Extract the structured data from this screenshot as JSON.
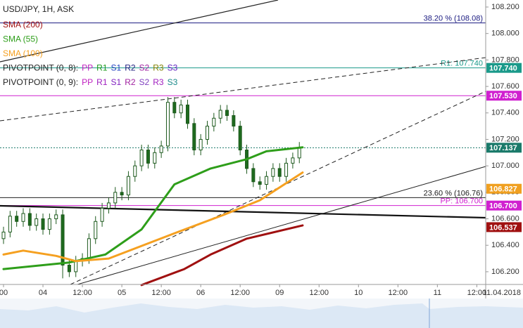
{
  "chart_data": {
    "type": "candlestick",
    "title": "USD/JPY, 1H, ASK",
    "xlim": [
      -1.07,
      146.7
    ],
    "ylim": [
      106.104,
      108.253
    ],
    "xticks": [
      {
        "value": 0,
        "label": "00"
      },
      {
        "value": 12,
        "label": "04"
      },
      {
        "value": 24,
        "label": "12:00"
      },
      {
        "value": 36,
        "label": "05"
      },
      {
        "value": 48,
        "label": "12:00"
      },
      {
        "value": 60,
        "label": "06"
      },
      {
        "value": 72,
        "label": "12:00"
      },
      {
        "value": 84,
        "label": "09"
      },
      {
        "value": 96,
        "label": "12:00"
      },
      {
        "value": 108,
        "label": "10"
      },
      {
        "value": 120,
        "label": "12:00"
      },
      {
        "value": 132,
        "label": "11"
      },
      {
        "value": 144,
        "label": "12:00"
      }
    ],
    "date_label": "11.04.2018",
    "yticks": [
      {
        "value": 106.2,
        "label": "106.200"
      },
      {
        "value": 106.4,
        "label": "106.400"
      },
      {
        "value": 106.6,
        "label": "106.600"
      },
      {
        "value": 106.8,
        "label": "106.800"
      },
      {
        "value": 107.0,
        "label": "107.000"
      },
      {
        "value": 107.2,
        "label": "107.200"
      },
      {
        "value": 107.4,
        "label": "107.400"
      },
      {
        "value": 107.6,
        "label": "107.600"
      },
      {
        "value": 107.8,
        "label": "107.800"
      },
      {
        "value": 108.0,
        "label": "108.000"
      },
      {
        "value": 108.2,
        "label": "108.200"
      }
    ],
    "up_color": "#ffffff",
    "down_color": "#1e6b1e",
    "wick_color": "#1e5a1e",
    "candles": {
      "x": [
        0,
        2,
        4,
        6,
        8,
        10,
        12,
        14,
        16,
        18,
        20,
        22,
        24,
        26,
        28,
        30,
        32,
        34,
        36,
        38,
        40,
        42,
        44,
        46,
        48,
        50,
        52,
        54,
        56,
        58,
        60,
        62,
        64,
        66,
        68,
        70,
        72,
        74,
        76,
        78,
        80,
        82,
        84,
        86,
        88,
        90
      ],
      "open": [
        106.45,
        106.5,
        106.62,
        106.58,
        106.64,
        106.55,
        106.6,
        106.52,
        106.6,
        106.63,
        106.25,
        106.2,
        106.28,
        106.3,
        106.45,
        106.58,
        106.68,
        106.72,
        106.8,
        106.78,
        106.92,
        107.0,
        107.12,
        107.02,
        107.1,
        107.15,
        107.48,
        107.4,
        107.46,
        107.32,
        107.12,
        107.2,
        107.3,
        107.36,
        107.42,
        107.38,
        107.3,
        107.12,
        106.98,
        106.88,
        106.86,
        106.92,
        106.98,
        106.92,
        107.02,
        107.06
      ],
      "high": [
        106.54,
        106.66,
        106.66,
        106.68,
        106.68,
        106.64,
        106.64,
        106.64,
        106.67,
        106.67,
        106.29,
        106.32,
        106.34,
        106.49,
        106.62,
        106.72,
        106.76,
        106.84,
        106.84,
        106.96,
        107.04,
        107.16,
        107.16,
        107.14,
        107.19,
        107.52,
        107.52,
        107.5,
        107.5,
        107.36,
        107.24,
        107.34,
        107.4,
        107.46,
        107.46,
        107.42,
        107.34,
        107.16,
        107.02,
        106.92,
        106.96,
        107.02,
        107.02,
        107.06,
        107.1,
        107.18
      ],
      "low": [
        106.41,
        106.46,
        106.54,
        106.54,
        106.51,
        106.51,
        106.48,
        106.48,
        106.56,
        106.15,
        106.16,
        106.16,
        106.24,
        106.26,
        106.41,
        106.54,
        106.64,
        106.68,
        106.74,
        106.74,
        106.88,
        106.96,
        106.98,
        106.98,
        107.06,
        107.11,
        107.36,
        107.36,
        107.28,
        107.08,
        107.08,
        107.16,
        107.26,
        107.32,
        107.34,
        107.26,
        107.08,
        106.94,
        106.84,
        106.82,
        106.82,
        106.88,
        106.88,
        106.88,
        106.98,
        107.02
      ],
      "close": [
        106.5,
        106.62,
        106.58,
        106.64,
        106.55,
        106.6,
        106.52,
        106.6,
        106.63,
        106.25,
        106.2,
        106.28,
        106.3,
        106.45,
        106.58,
        106.68,
        106.72,
        106.8,
        106.78,
        106.92,
        107.0,
        107.12,
        107.02,
        107.1,
        107.15,
        107.48,
        107.4,
        107.46,
        107.32,
        107.12,
        107.2,
        107.3,
        107.36,
        107.42,
        107.38,
        107.3,
        107.12,
        106.98,
        106.88,
        106.86,
        106.92,
        106.98,
        106.92,
        107.02,
        107.06,
        107.14
      ]
    },
    "series": [
      {
        "name": "SMA (200)",
        "color": "#a01010",
        "x": [
          42,
          55,
          63,
          74,
          91
        ],
        "values": [
          106.1,
          106.22,
          106.33,
          106.45,
          106.55
        ]
      },
      {
        "name": "SMA (55)",
        "color": "#2e9e1a",
        "x": [
          0,
          20,
          31,
          42,
          52,
          63,
          74,
          80,
          91
        ],
        "values": [
          106.22,
          106.27,
          106.33,
          106.52,
          106.86,
          106.98,
          107.05,
          107.11,
          107.14
        ]
      },
      {
        "name": "SMA (100)",
        "color": "#f5a020",
        "x": [
          0,
          6,
          16,
          22,
          32,
          53,
          67,
          78,
          91
        ],
        "values": [
          106.33,
          106.36,
          106.32,
          106.28,
          106.3,
          106.5,
          106.63,
          106.74,
          106.95
        ]
      }
    ],
    "pivot_legends": [
      {
        "label": "PIVOTPOINT (0, 8):",
        "items": [
          {
            "text": "PP",
            "color": "#c020c0"
          },
          {
            "text": "R1",
            "color": "#1a9a1a"
          },
          {
            "text": "S1",
            "color": "#2040c0"
          },
          {
            "text": "R2",
            "color": "#202080"
          },
          {
            "text": "S2",
            "color": "#a020a0"
          },
          {
            "text": "R3",
            "color": "#808000"
          },
          {
            "text": "S3",
            "color": "#6020c0"
          }
        ]
      },
      {
        "label": "PIVOTPOINT (0, 9):",
        "items": [
          {
            "text": "PP",
            "color": "#c020c0"
          },
          {
            "text": "R1",
            "color": "#a020c0"
          },
          {
            "text": "S1",
            "color": "#8020c0"
          },
          {
            "text": "R2",
            "color": "#a020a0"
          },
          {
            "text": "S2",
            "color": "#8040c0"
          },
          {
            "text": "R3",
            "color": "#a020c0"
          },
          {
            "text": "S3",
            "color": "#1a8a8a"
          }
        ]
      }
    ],
    "levels": [
      {
        "value": 108.08,
        "label": "38.20 % (108.08)",
        "color": "#1a1a80"
      },
      {
        "value": 107.74,
        "label": "R1: 107.740",
        "color": "#1a9a8a"
      },
      {
        "value": 107.53,
        "color": "#d020d0"
      },
      {
        "value": 107.137,
        "color": "#1a7a6a",
        "dashed": true
      },
      {
        "value": 106.76,
        "label": "23.60 % (106.76)",
        "color": "#202020"
      },
      {
        "value": 106.7,
        "label": "PP: 106.700",
        "color": "#d020d0"
      }
    ],
    "price_labels": [
      {
        "value": 107.74,
        "label": "107.740",
        "color": "#1a9a8a"
      },
      {
        "value": 107.53,
        "label": "107.530",
        "color": "#d020d0"
      },
      {
        "value": 107.137,
        "label": "107.137",
        "color": "#1a7a6a"
      },
      {
        "value": 106.827,
        "label": "106.827",
        "color": "#f0a020"
      },
      {
        "value": 106.7,
        "label": "106.700",
        "color": "#d020d0"
      },
      {
        "value": 106.537,
        "label": "106.537",
        "color": "#a01010"
      }
    ]
  }
}
